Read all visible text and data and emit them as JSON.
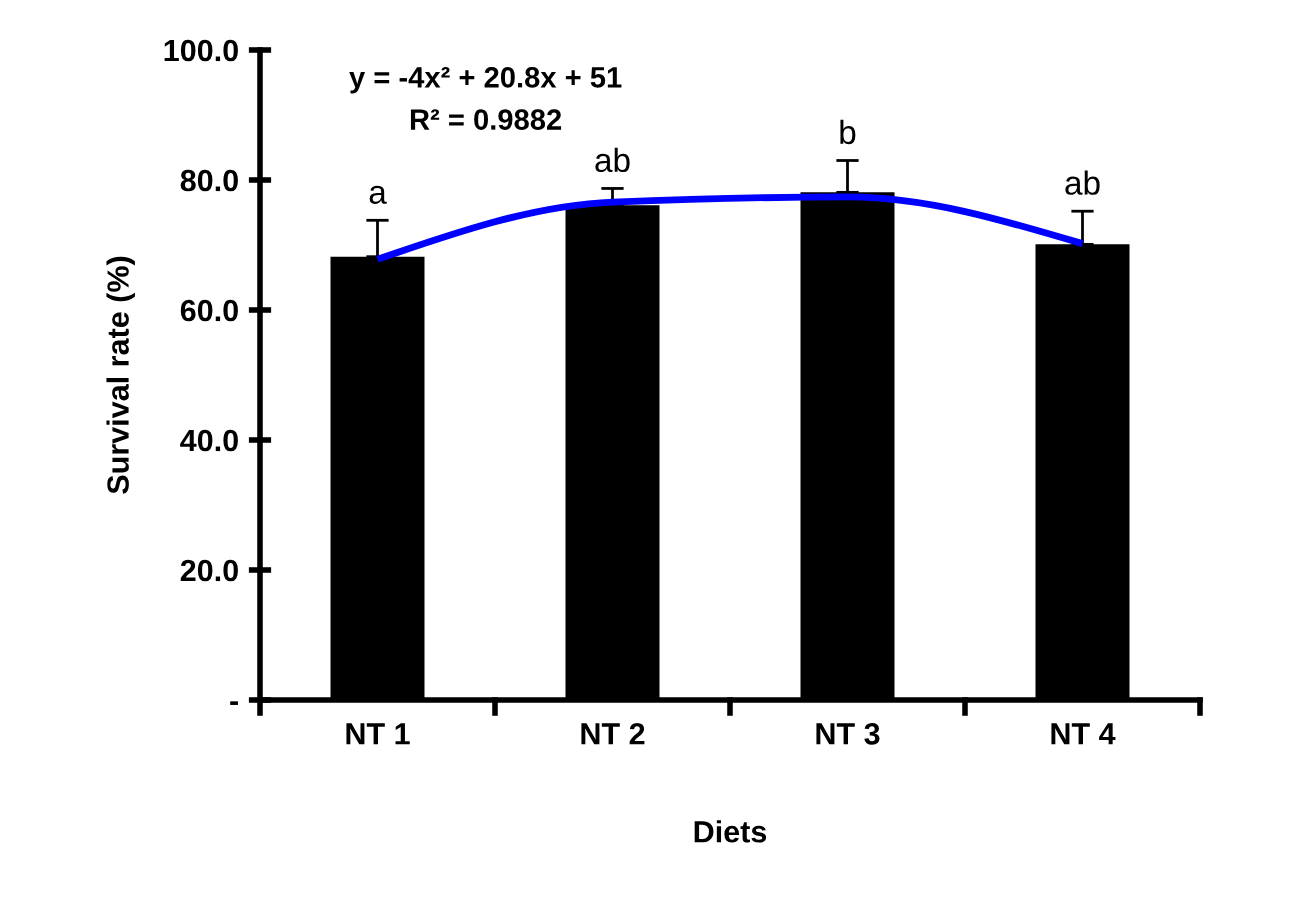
{
  "chart_data": {
    "type": "bar",
    "xlabel": "Diets",
    "ylabel": "Survival rate (%)",
    "categories": [
      "NT 1",
      "NT 2",
      "NT 3",
      "NT 4"
    ],
    "series": [
      {
        "type": "bar",
        "color": "#000000",
        "values": [
          68.2,
          76.1,
          78.1,
          70.1
        ],
        "errors": [
          5.6,
          2.6,
          4.9,
          5.1
        ]
      },
      {
        "type": "line",
        "color": "#0000ff",
        "values": [
          67.8,
          76.6,
          77.4,
          70.2
        ]
      }
    ],
    "ylim": [
      0,
      100
    ],
    "yticks": [
      {
        "value": 0,
        "label": "-"
      },
      {
        "value": 20,
        "label": "20.0"
      },
      {
        "value": 40,
        "label": "40.0"
      },
      {
        "value": 60,
        "label": "60.0"
      },
      {
        "value": 80,
        "label": "80.0"
      },
      {
        "value": 100,
        "label": "100.0"
      }
    ],
    "grid": false,
    "legend": false,
    "annotations": [
      "y = -4x² + 20.8x + 51",
      "R² = 0.9882",
      {
        "text": "a",
        "x": "NT 1",
        "y": 73.8
      },
      {
        "text": "ab",
        "x": "NT 2",
        "y": 78.7
      },
      {
        "text": "b",
        "x": "NT 3",
        "y": 83.0
      },
      {
        "text": "ab",
        "x": "NT 4",
        "y": 75.2
      }
    ]
  }
}
